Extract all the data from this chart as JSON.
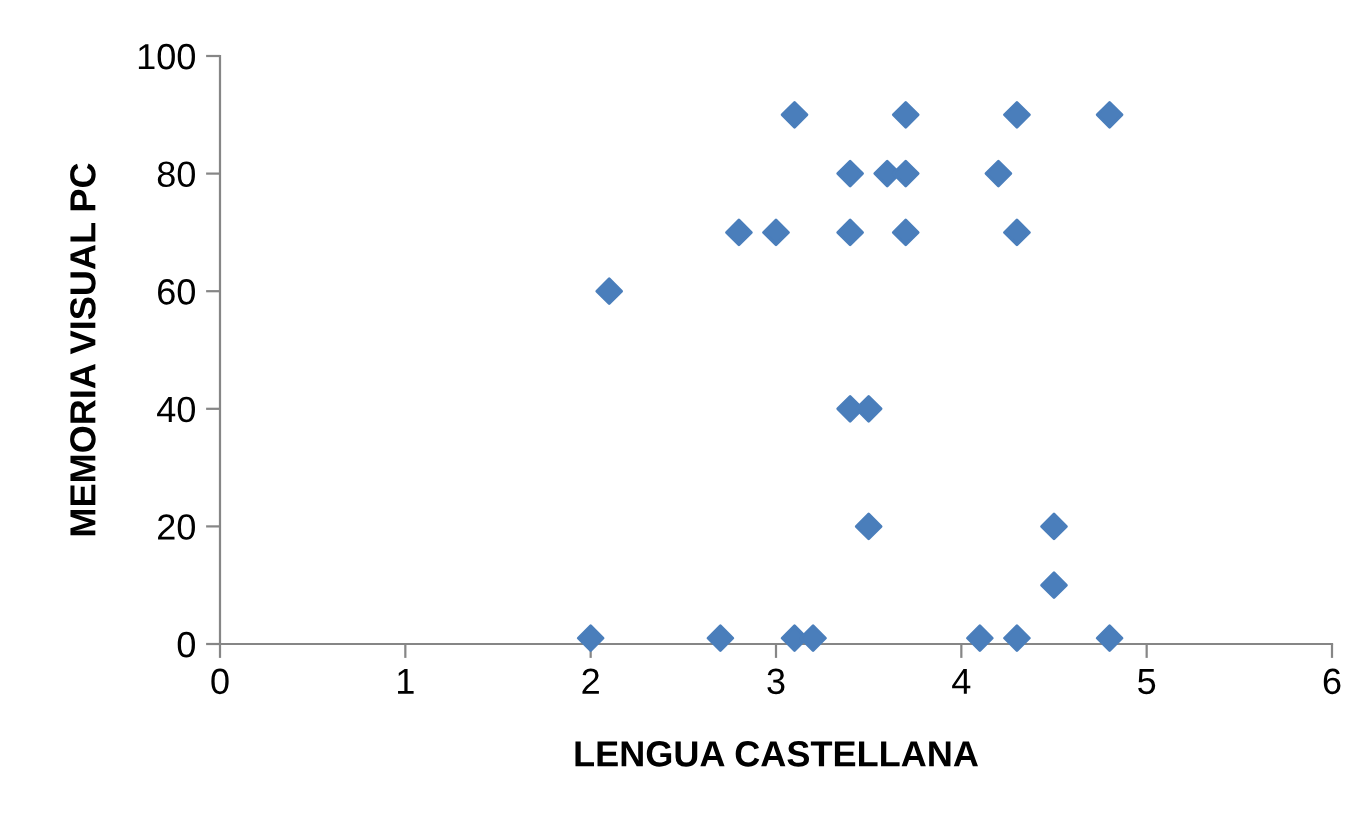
{
  "chart_data": {
    "type": "scatter",
    "xlabel": "LENGUA CASTELLANA",
    "ylabel": "MEMORIA VISUAL PC",
    "x": [
      2.0,
      2.1,
      2.7,
      2.8,
      3.0,
      3.1,
      3.1,
      3.2,
      3.4,
      3.4,
      3.4,
      3.5,
      3.5,
      3.6,
      3.7,
      3.7,
      3.7,
      4.1,
      4.2,
      4.3,
      4.3,
      4.3,
      4.5,
      4.5,
      4.8,
      4.8
    ],
    "series": [
      {
        "color": "#4a7ebb",
        "values": [
          1,
          60,
          1,
          70,
          70,
          90,
          1,
          1,
          80,
          70,
          40,
          40,
          20,
          80,
          90,
          80,
          70,
          1,
          80,
          90,
          70,
          1,
          20,
          10,
          90,
          1
        ]
      }
    ],
    "xlim": [
      0,
      6
    ],
    "xticks": [
      0,
      1,
      2,
      3,
      4,
      5,
      6
    ],
    "ylim": [
      0,
      100
    ],
    "yticks": [
      0,
      20,
      40,
      60,
      80,
      100
    ],
    "marker": "diamond",
    "grid": false,
    "legend": false
  }
}
